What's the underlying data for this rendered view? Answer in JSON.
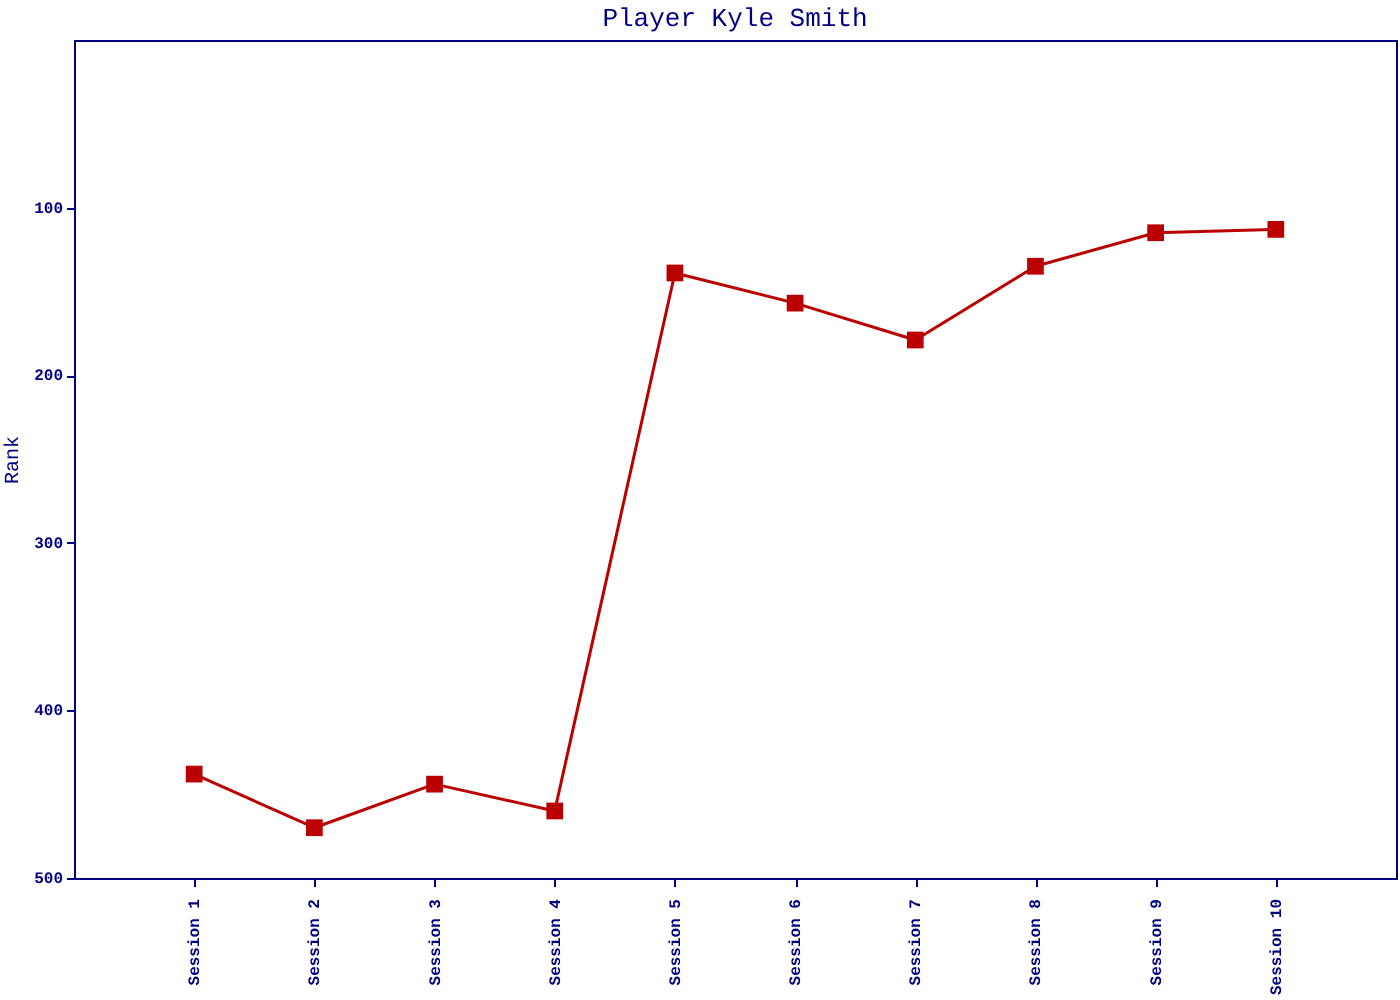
{
  "chart_data": {
    "type": "line",
    "title": "Player Kyle Smith",
    "ylabel": "Rank",
    "categories": [
      "Session 1",
      "Session 2",
      "Session 3",
      "Session 4",
      "Session 5",
      "Session 6",
      "Session 7",
      "Session 8",
      "Session 9",
      "Session 10"
    ],
    "series": [
      {
        "color": "#bb0000",
        "values": [
          438,
          470,
          444,
          460,
          139,
          157,
          179,
          135,
          115,
          113
        ]
      }
    ],
    "ylim": [
      500,
      0
    ],
    "yticks": [
      100,
      200,
      300,
      400,
      500
    ],
    "marker": "square",
    "grid": false,
    "legend": false
  }
}
